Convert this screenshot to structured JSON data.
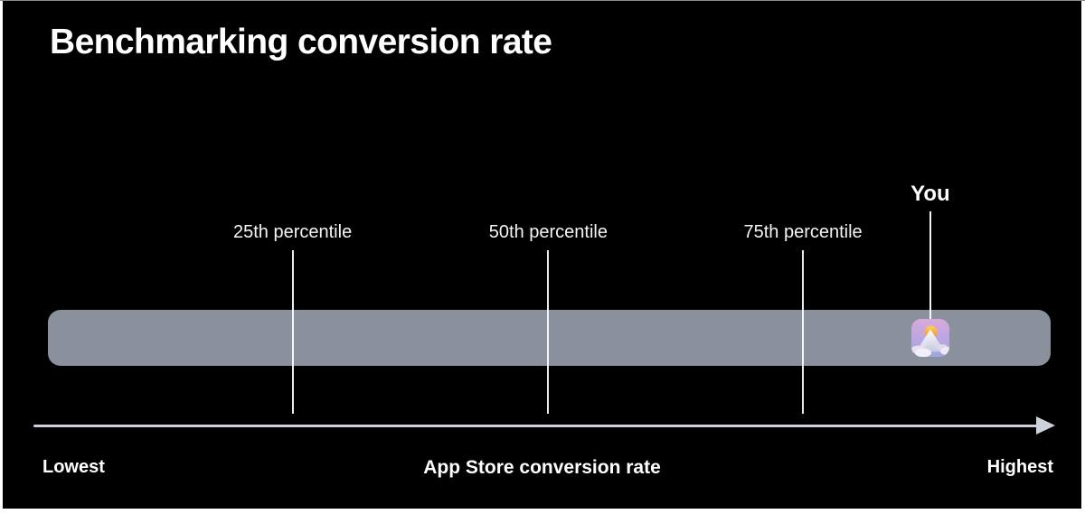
{
  "slide": {
    "title": "Benchmarking conversion rate",
    "background": "#000000",
    "bar_color": "#8b919c"
  },
  "axis_labels": {
    "left": "Lowest",
    "center": "App Store conversion rate",
    "right": "Highest"
  },
  "you": {
    "label": "You",
    "icon": "mountain-sun-app-icon"
  },
  "icon_colors": {
    "background_top": "#d9aadb",
    "background_mid": "#b9a6e0",
    "background_bottom": "#9fa5e3",
    "sun_top": "#ffcf54",
    "sun_bottom": "#f0922d",
    "mountain_top": "#ffffff",
    "mountain_bottom": "#c2c8de",
    "cloud": "#ece7f3"
  },
  "chart_data": {
    "type": "scatter",
    "title": "Benchmarking conversion rate",
    "xlabel": "App Store conversion rate",
    "ylabel": "",
    "x_axis_endpoint_labels": [
      "Lowest",
      "Highest"
    ],
    "x_range": [
      0,
      1
    ],
    "grid": false,
    "legend": false,
    "band": {
      "description": "full-range benchmark bar",
      "x_start": 0.0,
      "x_end": 1.0,
      "color": "#8b919c"
    },
    "reference_lines": [
      {
        "label": "25th percentile",
        "x": 0.244
      },
      {
        "label": "50th percentile",
        "x": 0.499
      },
      {
        "label": "75th percentile",
        "x": 0.753
      }
    ],
    "points": [
      {
        "label": "You",
        "x": 0.88,
        "marker": "mountain-sun-app-icon"
      }
    ],
    "colors": {
      "axis_line": "#cdd2da",
      "reference_line": "#f0f0f0",
      "text": "#ffffff",
      "background": "#000000"
    }
  }
}
